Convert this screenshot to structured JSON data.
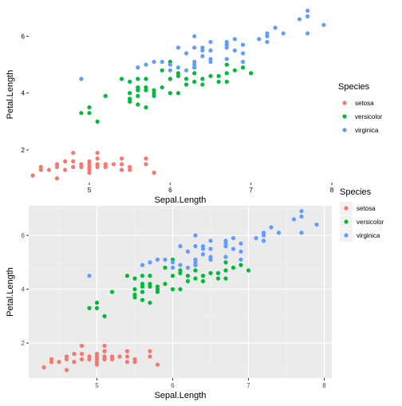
{
  "chart_data": [
    {
      "type": "scatter",
      "theme": "blank",
      "xlabel": "Sepal.Length",
      "ylabel": "Petal.Length",
      "xlim": [
        4.25,
        8.0
      ],
      "ylim": [
        0.85,
        7.05
      ],
      "xticks": [
        "5",
        "6",
        "7",
        "8"
      ],
      "yticks": [
        "2",
        "4",
        "6"
      ],
      "grid": false,
      "legend": {
        "title": "Species",
        "placement": "right",
        "entries": [
          "setosa",
          "versicolor",
          "virginica"
        ]
      }
    },
    {
      "type": "scatter",
      "theme": "grey",
      "xlabel": "Sepal.Length",
      "ylabel": "Petal.Length",
      "xlim": [
        4.1,
        8.1
      ],
      "ylim": [
        0.7,
        7.1
      ],
      "xticks": [
        "5",
        "6",
        "7",
        "8"
      ],
      "yticks": [
        "2",
        "4",
        "6"
      ],
      "grid": true,
      "legend": {
        "title": "Species",
        "placement": "right",
        "entries": [
          "setosa",
          "versicolor",
          "virginica"
        ]
      }
    }
  ],
  "colors": {
    "setosa": "#F8766D",
    "versicolor": "#00BA38",
    "virginica": "#619CFF",
    "panel_bg": "#EBEBEB",
    "grid_major": "#FFFFFF",
    "text": "#000000",
    "tick_text": "#4D4D4D"
  },
  "series": [
    {
      "name": "setosa",
      "points": [
        [
          4.3,
          1.1
        ],
        [
          4.4,
          1.3
        ],
        [
          4.4,
          1.4
        ],
        [
          4.5,
          1.3
        ],
        [
          4.6,
          1.0
        ],
        [
          4.6,
          1.4
        ],
        [
          4.6,
          1.5
        ],
        [
          4.7,
          1.3
        ],
        [
          4.7,
          1.6
        ],
        [
          4.8,
          1.4
        ],
        [
          4.8,
          1.6
        ],
        [
          4.8,
          1.9
        ],
        [
          4.9,
          1.4
        ],
        [
          4.9,
          1.5
        ],
        [
          5.0,
          1.2
        ],
        [
          5.0,
          1.3
        ],
        [
          5.0,
          1.4
        ],
        [
          5.0,
          1.5
        ],
        [
          5.0,
          1.6
        ],
        [
          5.1,
          1.4
        ],
        [
          5.1,
          1.5
        ],
        [
          5.1,
          1.7
        ],
        [
          5.1,
          1.9
        ],
        [
          5.2,
          1.4
        ],
        [
          5.2,
          1.5
        ],
        [
          5.3,
          1.5
        ],
        [
          5.4,
          1.3
        ],
        [
          5.4,
          1.5
        ],
        [
          5.4,
          1.7
        ],
        [
          5.5,
          1.3
        ],
        [
          5.5,
          1.4
        ],
        [
          5.7,
          1.5
        ],
        [
          5.7,
          1.7
        ],
        [
          5.8,
          1.2
        ]
      ]
    },
    {
      "name": "versicolor",
      "points": [
        [
          4.9,
          3.3
        ],
        [
          5.0,
          3.3
        ],
        [
          5.0,
          3.5
        ],
        [
          5.1,
          3.0
        ],
        [
          5.2,
          3.9
        ],
        [
          5.4,
          4.5
        ],
        [
          5.5,
          3.7
        ],
        [
          5.5,
          3.8
        ],
        [
          5.5,
          4.0
        ],
        [
          5.5,
          4.4
        ],
        [
          5.6,
          3.6
        ],
        [
          5.6,
          3.9
        ],
        [
          5.6,
          4.1
        ],
        [
          5.6,
          4.2
        ],
        [
          5.6,
          4.5
        ],
        [
          5.7,
          3.5
        ],
        [
          5.7,
          4.1
        ],
        [
          5.7,
          4.2
        ],
        [
          5.7,
          4.5
        ],
        [
          5.8,
          3.9
        ],
        [
          5.8,
          4.0
        ],
        [
          5.8,
          4.1
        ],
        [
          5.9,
          4.2
        ],
        [
          5.9,
          4.8
        ],
        [
          6.0,
          4.0
        ],
        [
          6.0,
          4.5
        ],
        [
          6.0,
          5.1
        ],
        [
          6.1,
          4.0
        ],
        [
          6.1,
          4.6
        ],
        [
          6.1,
          4.7
        ],
        [
          6.2,
          4.3
        ],
        [
          6.2,
          4.5
        ],
        [
          6.3,
          4.4
        ],
        [
          6.3,
          4.7
        ],
        [
          6.3,
          4.9
        ],
        [
          6.4,
          4.3
        ],
        [
          6.4,
          4.5
        ],
        [
          6.5,
          4.6
        ],
        [
          6.6,
          4.4
        ],
        [
          6.6,
          4.6
        ],
        [
          6.7,
          4.4
        ],
        [
          6.7,
          4.7
        ],
        [
          6.7,
          5.0
        ],
        [
          6.8,
          4.8
        ],
        [
          6.9,
          4.9
        ],
        [
          7.0,
          4.7
        ]
      ]
    },
    {
      "name": "virginica",
      "points": [
        [
          4.9,
          4.5
        ],
        [
          5.6,
          4.9
        ],
        [
          5.7,
          5.0
        ],
        [
          5.8,
          5.1
        ],
        [
          5.9,
          5.1
        ],
        [
          6.0,
          4.8
        ],
        [
          6.0,
          5.0
        ],
        [
          6.1,
          4.9
        ],
        [
          6.1,
          5.6
        ],
        [
          6.2,
          4.8
        ],
        [
          6.2,
          5.4
        ],
        [
          6.3,
          4.9
        ],
        [
          6.3,
          5.0
        ],
        [
          6.3,
          5.1
        ],
        [
          6.3,
          5.6
        ],
        [
          6.3,
          6.0
        ],
        [
          6.4,
          5.3
        ],
        [
          6.4,
          5.5
        ],
        [
          6.4,
          5.6
        ],
        [
          6.5,
          5.1
        ],
        [
          6.5,
          5.2
        ],
        [
          6.5,
          5.5
        ],
        [
          6.5,
          5.8
        ],
        [
          6.7,
          5.2
        ],
        [
          6.7,
          5.6
        ],
        [
          6.7,
          5.7
        ],
        [
          6.7,
          5.8
        ],
        [
          6.8,
          5.5
        ],
        [
          6.8,
          5.9
        ],
        [
          6.9,
          5.1
        ],
        [
          6.9,
          5.4
        ],
        [
          6.9,
          5.7
        ],
        [
          7.1,
          5.9
        ],
        [
          7.2,
          5.8
        ],
        [
          7.2,
          6.0
        ],
        [
          7.2,
          6.1
        ],
        [
          7.3,
          6.3
        ],
        [
          7.4,
          6.1
        ],
        [
          7.6,
          6.6
        ],
        [
          7.7,
          6.1
        ],
        [
          7.7,
          6.7
        ],
        [
          7.7,
          6.9
        ],
        [
          7.9,
          6.4
        ]
      ]
    }
  ]
}
